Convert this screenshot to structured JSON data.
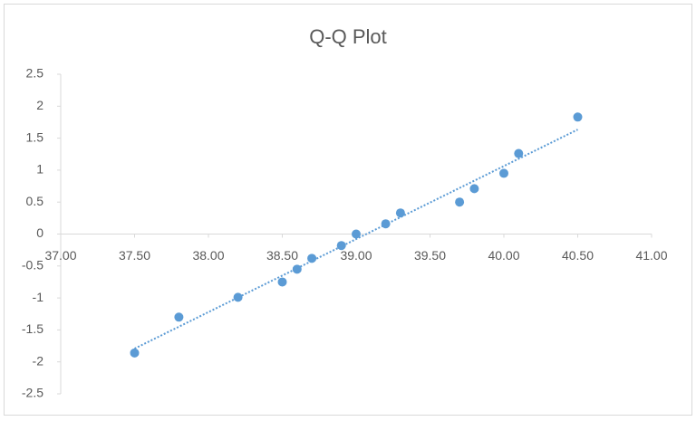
{
  "chart_data": {
    "type": "scatter",
    "title": "Q-Q Plot",
    "x": [
      37.5,
      37.8,
      38.2,
      38.5,
      38.6,
      38.7,
      38.9,
      39.0,
      39.2,
      39.3,
      39.7,
      39.8,
      40.0,
      40.1,
      40.5
    ],
    "values": [
      -1.86,
      -1.3,
      -0.99,
      -0.75,
      -0.55,
      -0.38,
      -0.18,
      0,
      0.16,
      0.33,
      0.5,
      0.71,
      0.95,
      1.26,
      1.83
    ],
    "color": "#5b9bd5",
    "trendline": "linear",
    "xlim": [
      37,
      41
    ],
    "xticks": [
      {
        "value": 37,
        "label": "37.00"
      },
      {
        "value": 37.5,
        "label": "37.50"
      },
      {
        "value": 38,
        "label": "38.00"
      },
      {
        "value": 38.5,
        "label": "38.50"
      },
      {
        "value": 39,
        "label": "39.00"
      },
      {
        "value": 39.5,
        "label": "39.50"
      },
      {
        "value": 40,
        "label": "40.00"
      },
      {
        "value": 40.5,
        "label": "40.50"
      },
      {
        "value": 41,
        "label": "41.00"
      }
    ],
    "ylim": [
      -2.5,
      2.5
    ],
    "yticks": [
      -2.5,
      -2,
      -1.5,
      -1,
      -0.5,
      0,
      0.5,
      1,
      1.5,
      2,
      2.5
    ]
  }
}
